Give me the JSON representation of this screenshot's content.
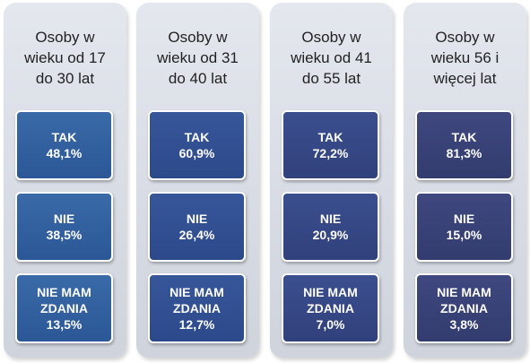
{
  "columns": [
    {
      "title": "Osoby w\nwieku od 17\ndo 30 lat",
      "items": [
        {
          "label": "TAK",
          "value": "48,1%"
        },
        {
          "label": "NIE",
          "value": "38,5%"
        },
        {
          "label": "NIE MAM\nZDANIA",
          "value": "13,5%"
        }
      ]
    },
    {
      "title": "Osoby w\nwieku od 31\ndo 40 lat",
      "items": [
        {
          "label": "TAK",
          "value": "60,9%"
        },
        {
          "label": "NIE",
          "value": "26,4%"
        },
        {
          "label": "NIE MAM\nZDANIA",
          "value": "12,7%"
        }
      ]
    },
    {
      "title": "Osoby w\nwieku od 41\ndo 55 lat",
      "items": [
        {
          "label": "TAK",
          "value": "72,2%"
        },
        {
          "label": "NIE",
          "value": "20,9%"
        },
        {
          "label": "NIE MAM\nZDANIA",
          "value": "7,0%"
        }
      ]
    },
    {
      "title": "Osoby w\nwieku 56 i\nwięcej lat",
      "items": [
        {
          "label": "TAK",
          "value": "81,3%"
        },
        {
          "label": "NIE",
          "value": "15,0%"
        },
        {
          "label": "NIE MAM\nZDANIA",
          "value": "3,8%"
        }
      ]
    }
  ]
}
